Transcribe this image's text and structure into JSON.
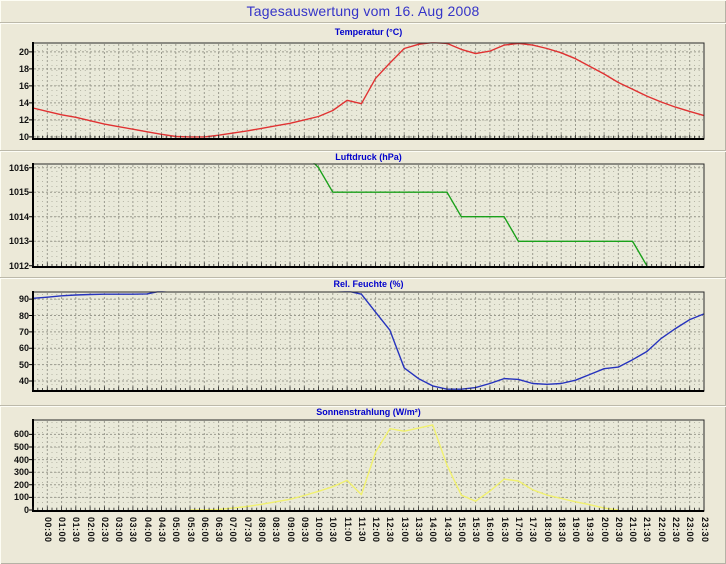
{
  "page_title": "Tagesauswertung vom 16. Aug 2008",
  "colors": {
    "page_title": "#3534c8",
    "chart_title": "#0202cc",
    "temperature": "#e03232",
    "pressure": "#1aa11a",
    "humidity": "#2633bd",
    "radiation": "#f1f16e",
    "page_background": "#ece9d8",
    "plot_background": "#e9e9d9"
  },
  "chart_data": {
    "type": "line",
    "x_step_minutes": 30,
    "x": [
      "00:00",
      "00:30",
      "01:00",
      "01:30",
      "02:00",
      "02:30",
      "03:00",
      "03:30",
      "04:00",
      "04:30",
      "05:00",
      "05:30",
      "06:00",
      "06:30",
      "07:00",
      "07:30",
      "08:00",
      "08:30",
      "09:00",
      "09:30",
      "10:00",
      "10:30",
      "11:00",
      "11:30",
      "12:00",
      "12:30",
      "13:00",
      "13:30",
      "14:00",
      "14:30",
      "15:00",
      "15:30",
      "16:00",
      "16:30",
      "17:00",
      "17:30",
      "18:00",
      "18:30",
      "19:00",
      "19:30",
      "20:00",
      "20:30",
      "21:00",
      "21:30",
      "22:00",
      "22:30",
      "23:00",
      "23:30"
    ],
    "x_tick_labels": [
      "00:30",
      "01:00",
      "01:30",
      "02:00",
      "02:30",
      "03:00",
      "03:30",
      "04:00",
      "04:30",
      "05:00",
      "05:30",
      "06:00",
      "06:30",
      "07:00",
      "07:30",
      "08:00",
      "08:30",
      "09:00",
      "09:30",
      "10:00",
      "10:30",
      "11:00",
      "11:30",
      "12:00",
      "12:30",
      "13:00",
      "13:30",
      "14:00",
      "14:30",
      "15:00",
      "15:30",
      "16:00",
      "16:30",
      "17:00",
      "17:30",
      "18:00",
      "18:30",
      "19:00",
      "19:30",
      "20:00",
      "20:30",
      "21:00",
      "21:30",
      "22:00",
      "22:30",
      "23:00",
      "23:30"
    ],
    "panels": [
      {
        "title": "Temperatur (°C)",
        "unit": "°C",
        "color": "#e03232",
        "ylim": [
          9.75,
          21.05
        ],
        "yticks": [
          10,
          12,
          14,
          16,
          18,
          20
        ],
        "values": [
          13.4,
          13.0,
          12.6,
          12.3,
          11.9,
          11.5,
          11.2,
          10.9,
          10.6,
          10.3,
          10.05,
          10.0,
          10.0,
          10.2,
          10.45,
          10.7,
          11.0,
          11.3,
          11.6,
          12.0,
          12.4,
          13.1,
          14.3,
          13.9,
          16.9,
          18.7,
          20.4,
          20.9,
          21.1,
          21.0,
          20.3,
          19.8,
          20.1,
          20.8,
          21.0,
          20.8,
          20.4,
          19.9,
          19.2,
          18.3,
          17.4,
          16.4,
          15.6,
          14.8,
          14.1,
          13.5,
          13.0,
          12.5
        ]
      },
      {
        "title": "Luftdruck (hPa)",
        "unit": "hPa",
        "color": "#1aa11a",
        "ylim": [
          1011.95,
          1016.15
        ],
        "yticks": [
          1012,
          1013,
          1014,
          1015,
          1016
        ],
        "values": [
          null,
          null,
          null,
          null,
          null,
          null,
          null,
          null,
          null,
          null,
          null,
          null,
          null,
          null,
          null,
          null,
          null,
          null,
          null,
          1016.6,
          1016.0,
          1015,
          1015,
          1015,
          1015,
          1015,
          1015,
          1015,
          1015,
          1015,
          1014,
          1014,
          1014,
          1014,
          1013,
          1013,
          1013,
          1013,
          1013,
          1013,
          1013,
          1013,
          1013,
          1012,
          null,
          null,
          null,
          null
        ]
      },
      {
        "title": "Rel. Feuchte (%)",
        "unit": "%",
        "color": "#2633bd",
        "ylim": [
          33.9,
          94.35
        ],
        "yticks": [
          40,
          50,
          60,
          70,
          80,
          90
        ],
        "values": [
          90.5,
          91.2,
          92.0,
          92.5,
          92.8,
          93.0,
          93.0,
          93.0,
          93.2,
          95.0,
          96.0,
          96.5,
          97.0,
          97.0,
          97.0,
          97.0,
          97.0,
          96.5,
          96.5,
          96.0,
          96.0,
          95.5,
          95.0,
          93.0,
          82.0,
          71.0,
          48.0,
          41.5,
          37.0,
          35.0,
          35.0,
          36.0,
          38.5,
          41.5,
          41.0,
          38.5,
          38.0,
          38.5,
          40.5,
          44.0,
          47.5,
          48.5,
          53.0,
          58.0,
          66.0,
          72.0,
          77.5,
          81.0
        ]
      },
      {
        "title": "Sonnenstrahlung (W/m²)",
        "unit": "W/m²",
        "color": "#f1f16e",
        "ylim": [
          -8,
          714
        ],
        "yticks": [
          0,
          100,
          200,
          300,
          400,
          500,
          600
        ],
        "values": [
          null,
          null,
          null,
          null,
          null,
          null,
          null,
          null,
          null,
          null,
          null,
          0,
          0,
          5,
          15,
          28,
          45,
          65,
          85,
          115,
          148,
          185,
          235,
          122,
          460,
          645,
          625,
          650,
          675,
          355,
          118,
          70,
          150,
          245,
          230,
          160,
          118,
          92,
          65,
          42,
          15,
          0,
          null,
          null,
          null,
          null,
          null,
          null
        ]
      }
    ]
  }
}
